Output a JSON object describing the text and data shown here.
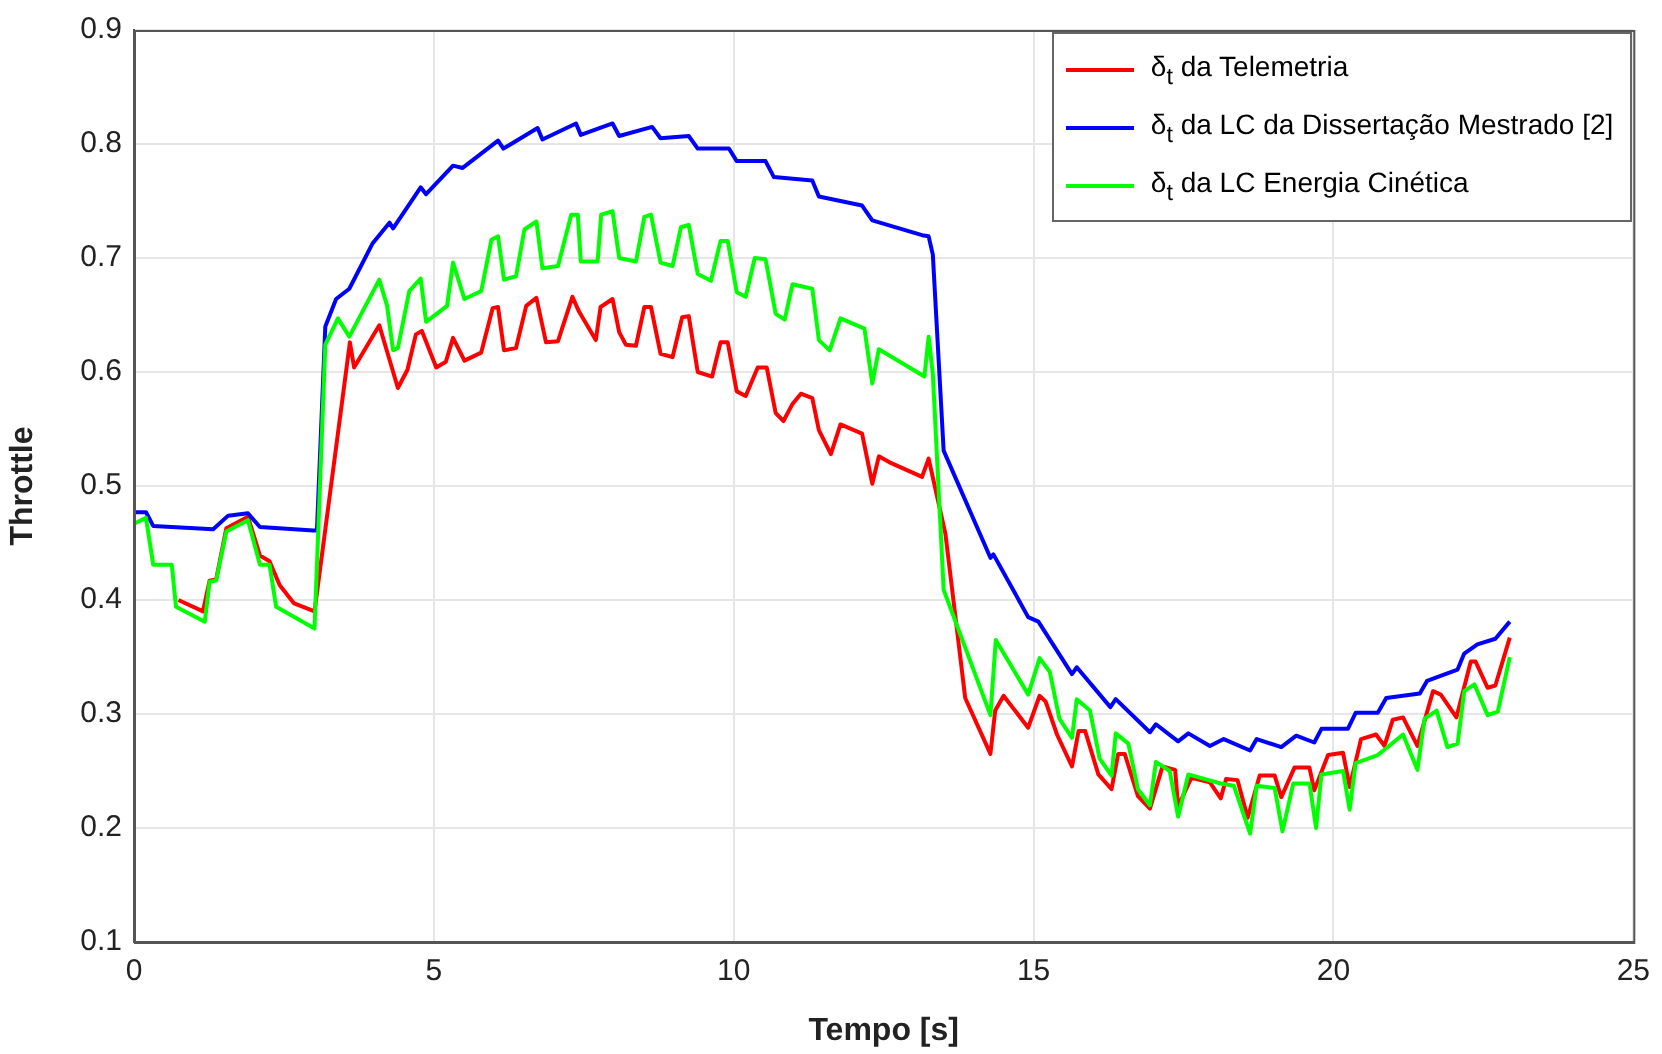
{
  "chart_data": {
    "type": "line",
    "xlabel": "Tempo [s]",
    "ylabel": "Throttle",
    "xlim": [
      0,
      25
    ],
    "xticks": [
      0,
      5,
      10,
      15,
      20,
      25
    ],
    "ylim": [
      0.1,
      0.9
    ],
    "yticks": [
      0.1,
      0.2,
      0.3,
      0.4,
      0.5,
      0.6,
      0.7,
      0.8,
      0.9
    ],
    "grid": true,
    "legend": "top right",
    "marker": "none",
    "line_style": "solid",
    "series": [
      {
        "name": "δ$_{t}$ da Telemetria",
        "color": "#ff0000",
        "x": [
          0.74,
          1.15,
          1.26,
          1.37,
          1.54,
          1.9,
          2.1,
          2.26,
          2.43,
          2.67,
          3.01,
          3.41,
          3.6,
          3.67,
          4.09,
          4.4,
          4.56,
          4.7,
          4.8,
          5.04,
          5.2,
          5.32,
          5.51,
          5.79,
          5.98,
          6.07,
          6.17,
          6.37,
          6.54,
          6.71,
          6.87,
          7.07,
          7.31,
          7.42,
          7.7,
          7.78,
          7.98,
          8.09,
          8.2,
          8.37,
          8.51,
          8.62,
          8.78,
          8.98,
          9.14,
          9.25,
          9.4,
          9.64,
          9.78,
          9.9,
          10.05,
          10.2,
          10.4,
          10.55,
          10.7,
          10.83,
          10.98,
          11.12,
          11.31,
          11.42,
          11.62,
          11.78,
          12.14,
          12.31,
          12.42,
          12.59,
          13.14,
          13.25,
          13.53,
          13.86,
          14.28,
          14.36,
          14.5,
          14.91,
          15.1,
          15.2,
          15.39,
          15.64,
          15.75,
          15.86,
          16.08,
          16.3,
          16.41,
          16.52,
          16.74,
          16.94,
          17.15,
          17.36,
          17.41,
          17.63,
          17.94,
          18.12,
          18.21,
          18.4,
          18.57,
          18.77,
          19.02,
          19.13,
          19.35,
          19.6,
          19.68,
          19.91,
          20.16,
          20.27,
          20.46,
          20.71,
          20.85,
          20.99,
          21.16,
          21.4,
          21.66,
          21.79,
          22.05,
          22.29,
          22.37,
          22.57,
          22.7,
          22.94
        ],
        "values": [
          0.4,
          0.39,
          0.417,
          0.418,
          0.463,
          0.473,
          0.439,
          0.434,
          0.413,
          0.397,
          0.39,
          0.55,
          0.626,
          0.604,
          0.641,
          0.586,
          0.602,
          0.633,
          0.636,
          0.604,
          0.609,
          0.63,
          0.61,
          0.617,
          0.656,
          0.657,
          0.619,
          0.621,
          0.658,
          0.665,
          0.626,
          0.627,
          0.666,
          0.653,
          0.628,
          0.657,
          0.664,
          0.635,
          0.624,
          0.623,
          0.657,
          0.657,
          0.616,
          0.613,
          0.648,
          0.649,
          0.6,
          0.596,
          0.626,
          0.626,
          0.583,
          0.579,
          0.604,
          0.604,
          0.564,
          0.557,
          0.572,
          0.581,
          0.577,
          0.549,
          0.528,
          0.554,
          0.546,
          0.502,
          0.526,
          0.521,
          0.508,
          0.524,
          0.458,
          0.314,
          0.265,
          0.303,
          0.316,
          0.288,
          0.316,
          0.311,
          0.282,
          0.254,
          0.285,
          0.285,
          0.247,
          0.234,
          0.265,
          0.265,
          0.228,
          0.217,
          0.254,
          0.251,
          0.219,
          0.244,
          0.24,
          0.226,
          0.243,
          0.242,
          0.209,
          0.246,
          0.246,
          0.227,
          0.253,
          0.253,
          0.233,
          0.264,
          0.266,
          0.236,
          0.278,
          0.282,
          0.272,
          0.295,
          0.297,
          0.272,
          0.32,
          0.317,
          0.297,
          0.346,
          0.346,
          0.323,
          0.325,
          0.367
        ]
      },
      {
        "name": "δ$_{t}$ da LC da Dissertação Mestrado [2]",
        "color": "#0000ff",
        "x": [
          0,
          0.2,
          0.32,
          1.32,
          1.57,
          1.9,
          2.1,
          2.99,
          3.05,
          3.19,
          3.37,
          3.59,
          3.98,
          4.26,
          4.32,
          4.78,
          4.87,
          5.32,
          5.48,
          6.07,
          6.16,
          6.73,
          6.81,
          7.37,
          7.45,
          7.98,
          8.09,
          8.64,
          8.78,
          9.25,
          9.4,
          9.92,
          10.05,
          10.53,
          10.67,
          11.31,
          11.42,
          12.14,
          12.31,
          13.14,
          13.25,
          13.32,
          13.5,
          14.28,
          14.33,
          14.91,
          15.08,
          15.64,
          15.72,
          16.28,
          16.37,
          16.94,
          17.04,
          17.41,
          17.58,
          17.94,
          18.17,
          18.61,
          18.72,
          19.13,
          19.38,
          19.68,
          19.8,
          20.24,
          20.37,
          20.74,
          20.88,
          21.44,
          21.56,
          22.07,
          22.18,
          22.4,
          22.7,
          22.94
        ],
        "values": [
          0.477,
          0.477,
          0.465,
          0.462,
          0.474,
          0.476,
          0.464,
          0.461,
          0.461,
          0.64,
          0.664,
          0.673,
          0.713,
          0.731,
          0.726,
          0.762,
          0.756,
          0.781,
          0.779,
          0.803,
          0.796,
          0.814,
          0.804,
          0.818,
          0.808,
          0.818,
          0.807,
          0.815,
          0.805,
          0.807,
          0.796,
          0.796,
          0.785,
          0.785,
          0.771,
          0.768,
          0.754,
          0.746,
          0.733,
          0.72,
          0.719,
          0.703,
          0.531,
          0.437,
          0.44,
          0.385,
          0.381,
          0.335,
          0.341,
          0.306,
          0.313,
          0.284,
          0.291,
          0.276,
          0.283,
          0.272,
          0.278,
          0.268,
          0.278,
          0.271,
          0.281,
          0.275,
          0.287,
          0.287,
          0.301,
          0.301,
          0.314,
          0.318,
          0.329,
          0.339,
          0.353,
          0.361,
          0.366,
          0.381
        ]
      },
      {
        "name": "δ$_{t}$ da LC Energia Cinética",
        "color": "#00ff00",
        "x": [
          0,
          0.2,
          0.32,
          0.63,
          0.7,
          1.18,
          1.26,
          1.37,
          1.54,
          1.9,
          2.1,
          2.26,
          2.37,
          3.01,
          3.19,
          3.4,
          3.59,
          4.09,
          4.22,
          4.32,
          4.4,
          4.59,
          4.78,
          4.87,
          5.22,
          5.32,
          5.51,
          5.79,
          5.96,
          6.07,
          6.17,
          6.37,
          6.51,
          6.71,
          6.81,
          7.07,
          7.29,
          7.4,
          7.45,
          7.73,
          7.79,
          7.98,
          8.09,
          8.37,
          8.51,
          8.62,
          8.78,
          8.98,
          9.12,
          9.25,
          9.4,
          9.62,
          9.78,
          9.9,
          10.05,
          10.2,
          10.35,
          10.53,
          10.7,
          10.85,
          10.98,
          11.31,
          11.42,
          11.6,
          11.78,
          12.18,
          12.31,
          12.42,
          13.18,
          13.25,
          13.32,
          13.5,
          14.28,
          14.37,
          14.91,
          15.1,
          15.27,
          15.43,
          15.64,
          15.72,
          15.94,
          16.1,
          16.3,
          16.37,
          16.58,
          16.74,
          16.94,
          17.04,
          17.27,
          17.41,
          17.58,
          18.12,
          18.34,
          18.61,
          18.72,
          19.02,
          19.15,
          19.33,
          19.6,
          19.71,
          19.8,
          20.16,
          20.27,
          20.37,
          20.74,
          21.16,
          21.4,
          21.52,
          21.72,
          21.9,
          22.07,
          22.18,
          22.35,
          22.57,
          22.74,
          22.94
        ],
        "values": [
          0.467,
          0.472,
          0.431,
          0.431,
          0.394,
          0.381,
          0.416,
          0.417,
          0.46,
          0.47,
          0.431,
          0.431,
          0.394,
          0.375,
          0.624,
          0.647,
          0.631,
          0.681,
          0.658,
          0.619,
          0.621,
          0.671,
          0.682,
          0.644,
          0.658,
          0.696,
          0.664,
          0.671,
          0.716,
          0.719,
          0.681,
          0.684,
          0.725,
          0.732,
          0.691,
          0.693,
          0.738,
          0.738,
          0.697,
          0.697,
          0.738,
          0.741,
          0.7,
          0.697,
          0.736,
          0.738,
          0.696,
          0.693,
          0.727,
          0.729,
          0.686,
          0.68,
          0.715,
          0.715,
          0.67,
          0.666,
          0.7,
          0.699,
          0.651,
          0.646,
          0.677,
          0.673,
          0.628,
          0.619,
          0.647,
          0.638,
          0.59,
          0.62,
          0.596,
          0.631,
          0.598,
          0.409,
          0.299,
          0.365,
          0.317,
          0.349,
          0.337,
          0.296,
          0.279,
          0.313,
          0.303,
          0.261,
          0.246,
          0.283,
          0.274,
          0.234,
          0.22,
          0.258,
          0.25,
          0.21,
          0.247,
          0.239,
          0.237,
          0.195,
          0.237,
          0.235,
          0.197,
          0.239,
          0.239,
          0.2,
          0.247,
          0.25,
          0.216,
          0.257,
          0.264,
          0.282,
          0.251,
          0.296,
          0.303,
          0.271,
          0.274,
          0.32,
          0.326,
          0.299,
          0.302,
          0.35
        ]
      }
    ]
  }
}
